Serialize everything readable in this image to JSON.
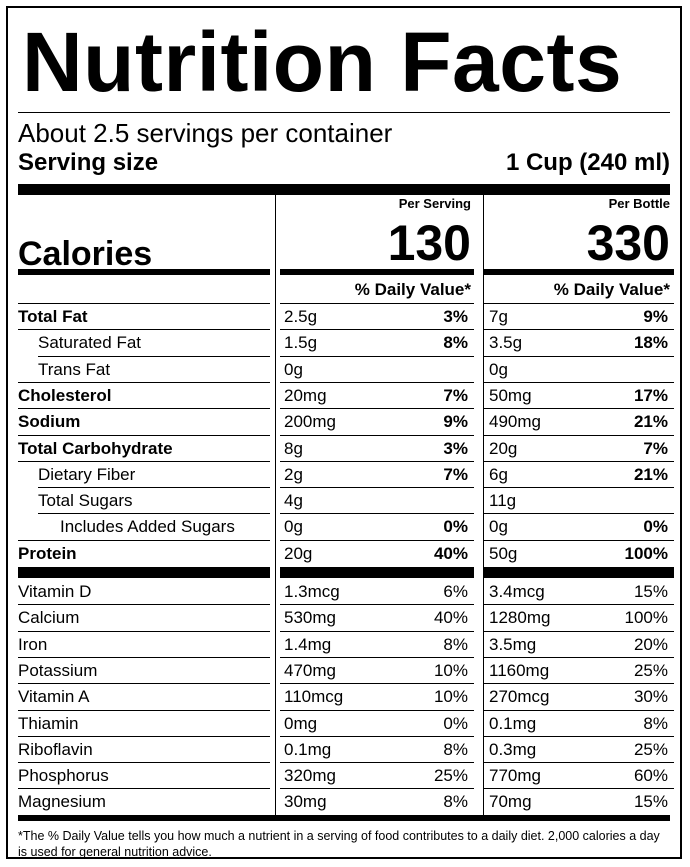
{
  "title": "Nutrition Facts",
  "servings_per_container": "About 2.5 servings per container",
  "serving_size_label": "Serving size",
  "serving_size_value": "1 Cup (240 ml)",
  "calories_label": "Calories",
  "col1_header": "Per Serving",
  "col2_header": "Per Bottle",
  "col1_calories": "130",
  "col2_calories": "330",
  "dv_header": "% Daily Value*",
  "nutrients": [
    {
      "name": "Total Fat",
      "bold": true,
      "indent": 0,
      "a1": "2.5g",
      "p1": "3%",
      "a2": "7g",
      "p2": "9%"
    },
    {
      "name": "Saturated Fat",
      "bold": false,
      "indent": 1,
      "a1": "1.5g",
      "p1": "8%",
      "a2": "3.5g",
      "p2": "18%"
    },
    {
      "name": "Trans Fat",
      "bold": false,
      "indent": 1,
      "a1": "0g",
      "p1": "",
      "a2": "0g",
      "p2": ""
    },
    {
      "name": "Cholesterol",
      "bold": true,
      "indent": 0,
      "a1": "20mg",
      "p1": "7%",
      "a2": "50mg",
      "p2": "17%"
    },
    {
      "name": "Sodium",
      "bold": true,
      "indent": 0,
      "a1": "200mg",
      "p1": "9%",
      "a2": "490mg",
      "p2": "21%"
    },
    {
      "name": "Total Carbohydrate",
      "bold": true,
      "indent": 0,
      "a1": "8g",
      "p1": "3%",
      "a2": "20g",
      "p2": "7%"
    },
    {
      "name": "Dietary Fiber",
      "bold": false,
      "indent": 1,
      "a1": "2g",
      "p1": "7%",
      "a2": "6g",
      "p2": "21%"
    },
    {
      "name": "Total Sugars",
      "bold": false,
      "indent": 1,
      "a1": "4g",
      "p1": "",
      "a2": "11g",
      "p2": ""
    },
    {
      "name": "Includes Added Sugars",
      "bold": false,
      "indent": 2,
      "a1": "0g",
      "p1": "0%",
      "a2": "0g",
      "p2": "0%"
    },
    {
      "name": "Protein",
      "bold": true,
      "indent": 0,
      "a1": "20g",
      "p1": "40%",
      "a2": "50g",
      "p2": "100%"
    }
  ],
  "vitamins": [
    {
      "name": "Vitamin D",
      "a1": "1.3mcg",
      "p1": "6%",
      "a2": "3.4mcg",
      "p2": "15%"
    },
    {
      "name": "Calcium",
      "a1": "530mg",
      "p1": "40%",
      "a2": "1280mg",
      "p2": "100%"
    },
    {
      "name": "Iron",
      "a1": "1.4mg",
      "p1": "8%",
      "a2": "3.5mg",
      "p2": "20%"
    },
    {
      "name": "Potassium",
      "a1": "470mg",
      "p1": "10%",
      "a2": "1160mg",
      "p2": "25%"
    },
    {
      "name": "Vitamin A",
      "a1": "110mcg",
      "p1": "10%",
      "a2": "270mcg",
      "p2": "30%"
    },
    {
      "name": "Thiamin",
      "a1": "0mg",
      "p1": "0%",
      "a2": "0.1mg",
      "p2": "8%"
    },
    {
      "name": "Riboflavin",
      "a1": "0.1mg",
      "p1": "8%",
      "a2": "0.3mg",
      "p2": "25%"
    },
    {
      "name": "Phosphorus",
      "a1": "320mg",
      "p1": "25%",
      "a2": "770mg",
      "p2": "60%"
    },
    {
      "name": "Magnesium",
      "a1": "30mg",
      "p1": "8%",
      "a2": "70mg",
      "p2": "15%"
    }
  ],
  "footnote": "*The % Daily Value tells you how much a nutrient in a serving of food contributes to a daily diet. 2,000 calories a day is used for general nutrition advice."
}
